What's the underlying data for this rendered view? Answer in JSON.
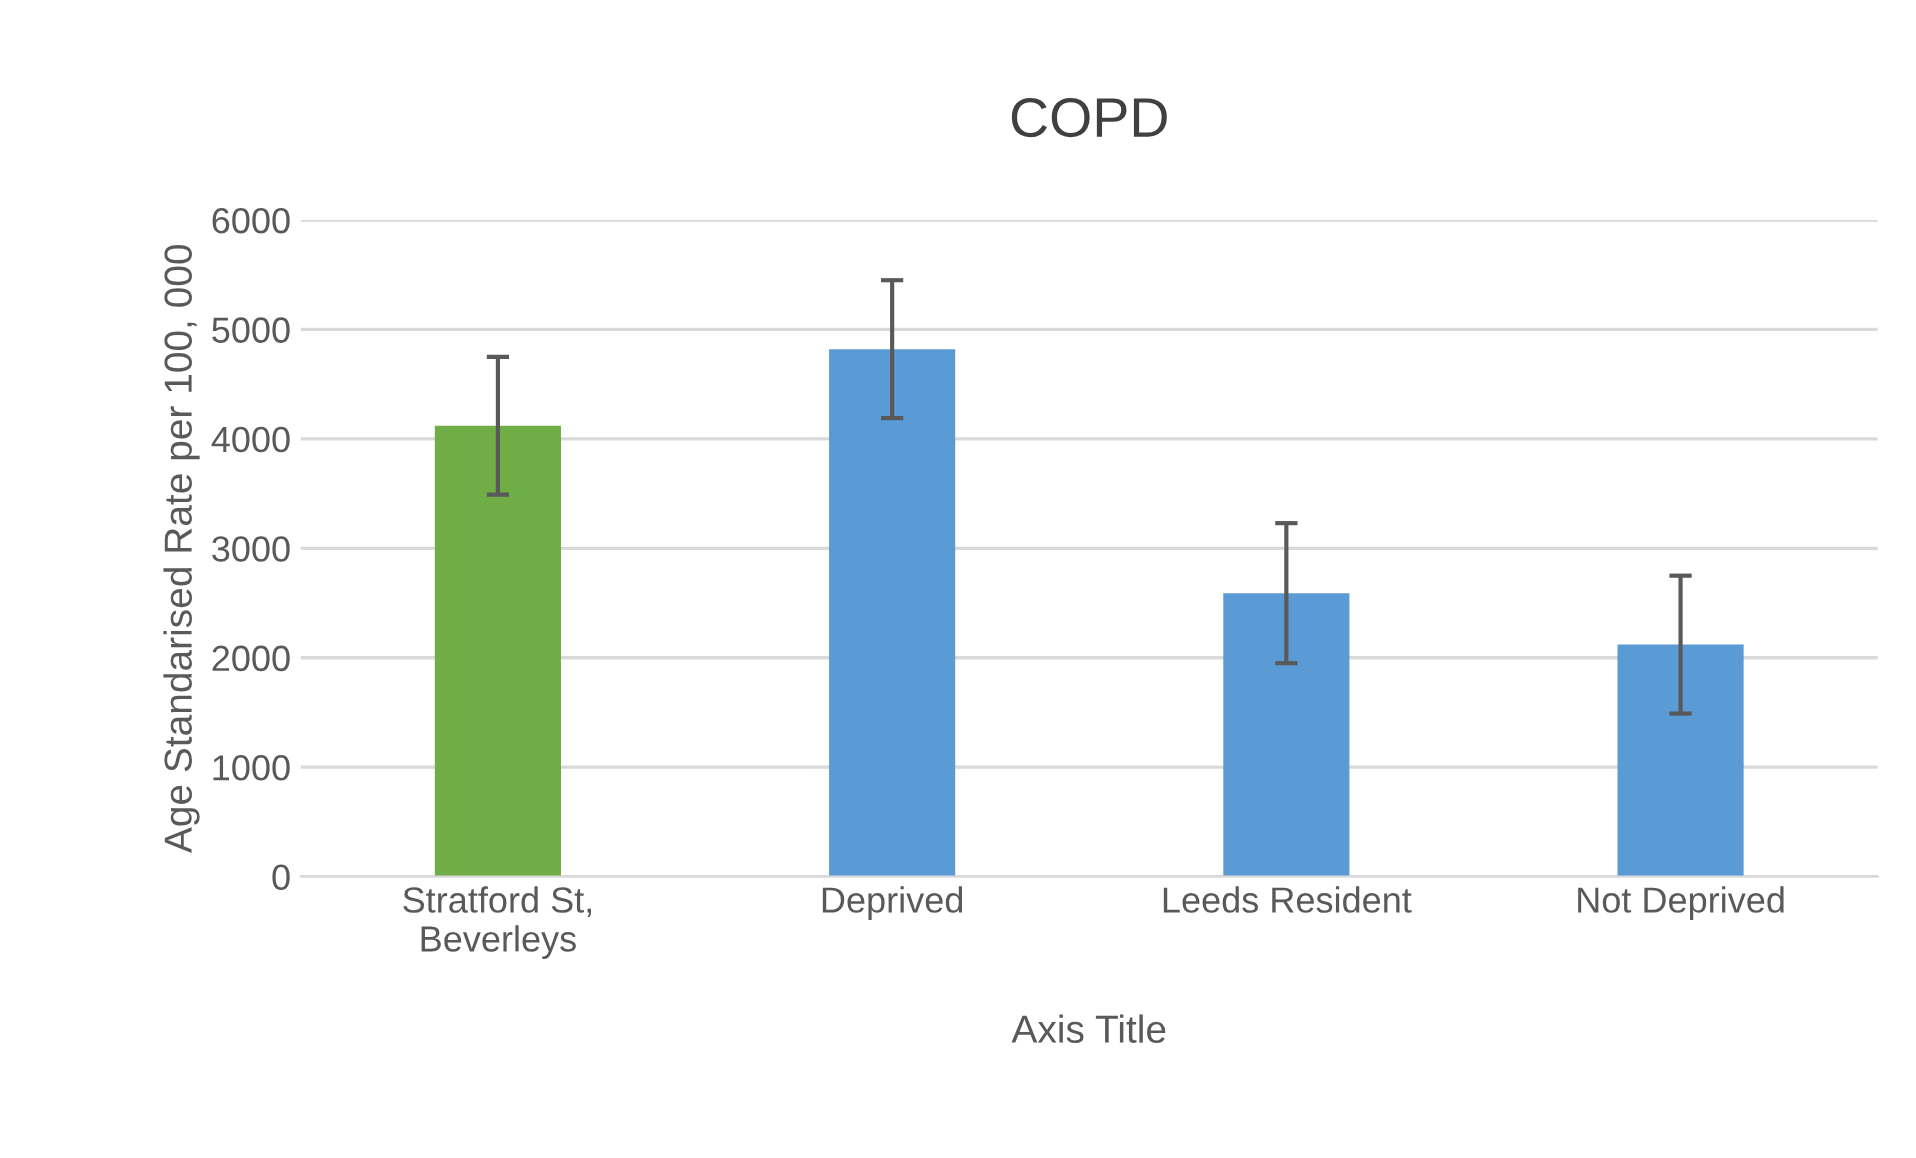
{
  "chart_data": {
    "type": "bar",
    "title": "COPD",
    "xlabel": "Axis Title",
    "ylabel": "Age Standarised Rate per 100, 000",
    "categories": [
      "Stratford St,\nBeverleys",
      "Deprived",
      "Leeds Resident",
      "Not Deprived"
    ],
    "values": [
      4120,
      4820,
      2590,
      2120
    ],
    "colors": [
      "#70ad47",
      "#5b9bd5",
      "#5b9bd5",
      "#5b9bd5"
    ],
    "errors": [
      630,
      630,
      640,
      630
    ],
    "ylim": [
      0,
      6000
    ],
    "yticks": [
      0,
      1000,
      2000,
      3000,
      4000,
      5000,
      6000
    ],
    "grid": "y",
    "legend": false
  }
}
